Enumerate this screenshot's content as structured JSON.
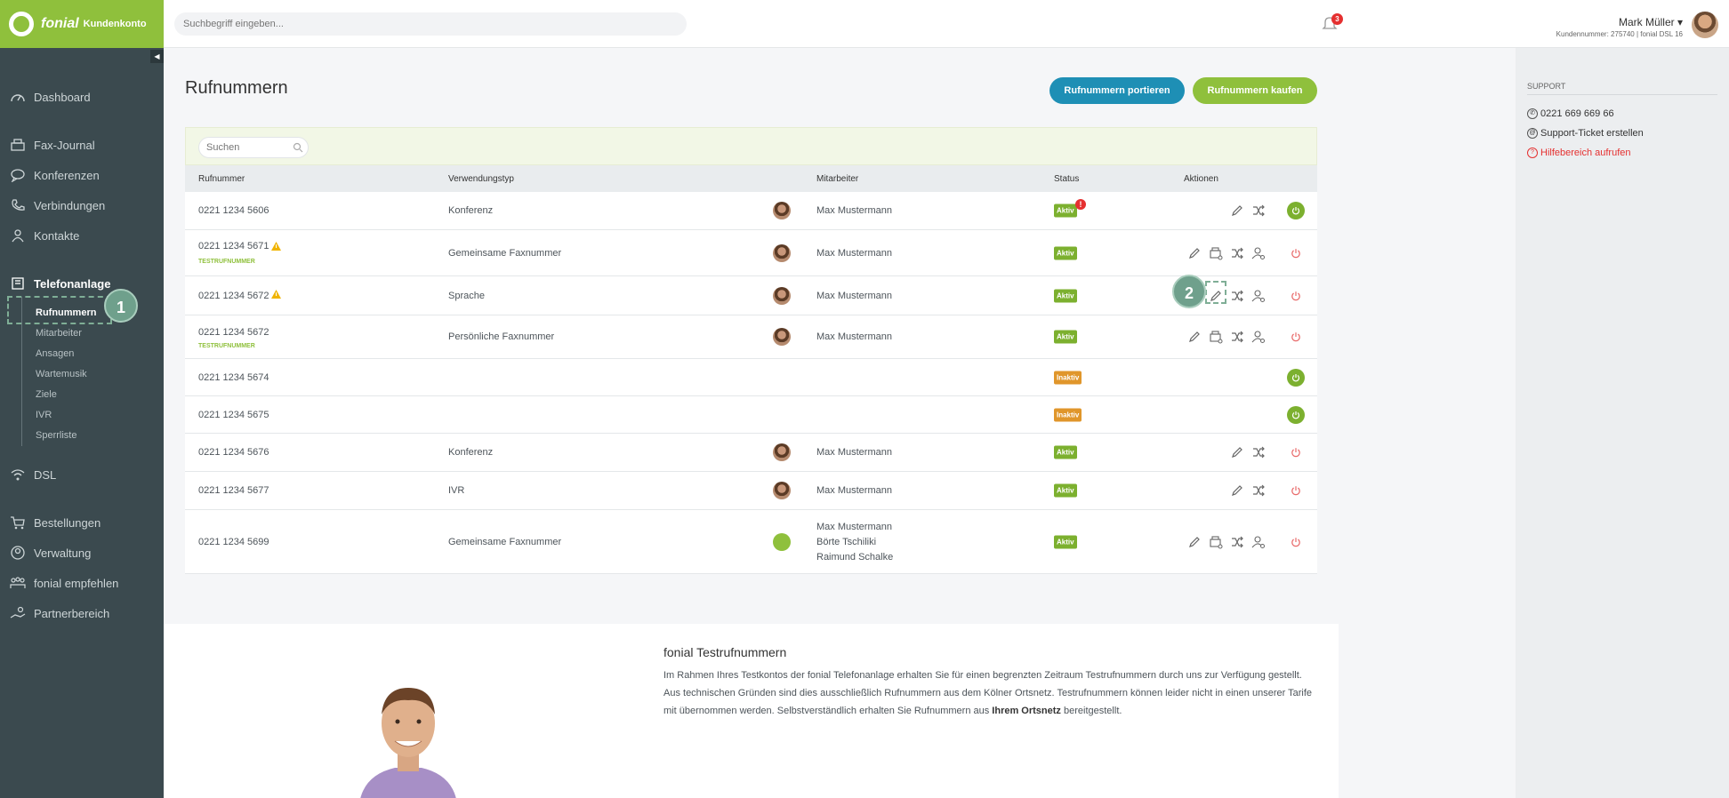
{
  "brand": {
    "name": "fonial",
    "subtitle": "Kundenkonto"
  },
  "topbar": {
    "search_placeholder": "Suchbegriff eingeben...",
    "notification_count": "3",
    "user_name": "Mark Müller ▾",
    "user_sub": "Kundennummer: 275740 | fonial DSL 16"
  },
  "sidebar": {
    "items": [
      {
        "label": "Dashboard",
        "icon": "dashboard-icon"
      },
      {
        "label": "Fax-Journal",
        "icon": "fax-icon"
      },
      {
        "label": "Konferenzen",
        "icon": "conference-icon"
      },
      {
        "label": "Verbindungen",
        "icon": "phone-icon"
      },
      {
        "label": "Kontakte",
        "icon": "contacts-icon"
      },
      {
        "label": "Telefonanlage",
        "icon": "pbx-icon"
      },
      {
        "label": "DSL",
        "icon": "wifi-icon"
      },
      {
        "label": "Bestellungen",
        "icon": "cart-icon"
      },
      {
        "label": "Verwaltung",
        "icon": "user-icon"
      },
      {
        "label": "fonial empfehlen",
        "icon": "recommend-icon"
      },
      {
        "label": "Partnerbereich",
        "icon": "partner-icon"
      }
    ],
    "sub_items": [
      "Rufnummern",
      "Mitarbeiter",
      "Ansagen",
      "Wartemusik",
      "Ziele",
      "IVR",
      "Sperrliste"
    ],
    "callout_1": "1"
  },
  "main": {
    "title": "Rufnummern",
    "btn_port": "Rufnummern portieren",
    "btn_buy": "Rufnummern kaufen",
    "table_search_placeholder": "Suchen",
    "columns": [
      "Rufnummer",
      "Verwendungstyp",
      "Mitarbeiter",
      "Status",
      "Aktionen"
    ],
    "test_label": "TESTRUFNUMMER",
    "callout_2": "2",
    "alert_mark": "!",
    "rows": [
      {
        "number": "0221 1234 5606",
        "type": "Konferenz",
        "employee": "Max Mustermann",
        "status": "Aktiv"
      },
      {
        "number": "0221 1234 5671",
        "type": "Gemeinsame Faxnummer",
        "employee": "Max Mustermann",
        "status": "Aktiv"
      },
      {
        "number": "0221 1234 5672",
        "type": "Sprache",
        "employee": "Max Mustermann",
        "status": "Aktiv"
      },
      {
        "number": "0221 1234 5672",
        "type": "Persönliche Faxnummer",
        "employee": "Max Mustermann",
        "status": "Aktiv"
      },
      {
        "number": "0221 1234 5674",
        "type": "",
        "employee": "",
        "status": "Inaktiv"
      },
      {
        "number": "0221 1234 5675",
        "type": "",
        "employee": "",
        "status": "Inaktiv"
      },
      {
        "number": "0221 1234 5676",
        "type": "Konferenz",
        "employee": "Max Mustermann",
        "status": "Aktiv"
      },
      {
        "number": "0221 1234 5677",
        "type": "IVR",
        "employee": "Max Mustermann",
        "status": "Aktiv"
      },
      {
        "number": "0221 1234 5699",
        "type": "Gemeinsame Faxnummer",
        "employee": "Max Mustermann",
        "employee2": "Börte Tschiliki",
        "employee3": "Raimund Schalke",
        "status": "Aktiv"
      }
    ]
  },
  "info": {
    "title": "fonial Testrufnummern",
    "line1": "Im Rahmen Ihres Testkontos der fonial Telefonanlage erhalten Sie für einen begrenzten Zeitraum Testrufnummern durch uns zur Verfügung gestellt.",
    "line2": "Aus technischen Gründen sind dies ausschließlich Rufnummern aus dem Kölner Ortsnetz. Testrufnummern können leider nicht in einen unserer Tarife",
    "line3a": "mit übernommen werden. Selbstverständlich erhalten Sie Rufnummern aus",
    "line3b": "Ihrem Ortsnetz",
    "line3c": "bereitgestellt."
  },
  "support": {
    "title": "SUPPORT",
    "phone": "0221 669 669 66",
    "ticket": "Support-Ticket erstellen",
    "help": "Hilfebereich aufrufen"
  }
}
